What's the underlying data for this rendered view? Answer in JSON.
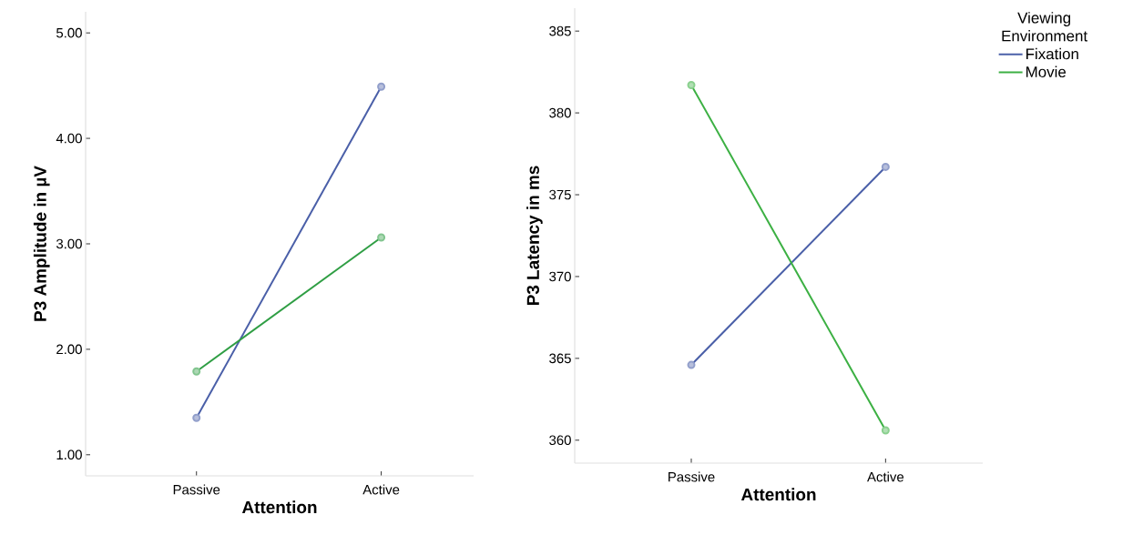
{
  "chart_data": [
    {
      "type": "line",
      "xlabel": "Attention",
      "ylabel": "P3 Amplitude in µV",
      "categories": [
        "Passive",
        "Active"
      ],
      "ylim": [
        0.8,
        5.2
      ],
      "yticks": [
        {
          "value": 1,
          "label": "1.00"
        },
        {
          "value": 2,
          "label": "2.00"
        },
        {
          "value": 3,
          "label": "3.00"
        },
        {
          "value": 4,
          "label": "4.00"
        },
        {
          "value": 5,
          "label": "5.00"
        }
      ],
      "marker": "circle",
      "grid": false,
      "series": [
        {
          "color": "#4a5fa8",
          "values": [
            1.35,
            4.49
          ]
        },
        {
          "color": "#2f9e44",
          "values": [
            1.79,
            3.06
          ]
        }
      ]
    },
    {
      "type": "line",
      "xlabel": "Attention",
      "ylabel": "P3 Latency in ms",
      "legend_title": "Viewing Environment",
      "categories": [
        "Passive",
        "Active"
      ],
      "ylim": [
        358.6,
        386.4
      ],
      "yticks": [
        360,
        365,
        370,
        375,
        380,
        385
      ],
      "marker": "circle",
      "grid": false,
      "legend": "right",
      "series": [
        {
          "name": "Fixation",
          "color": "#4a5fa8",
          "values": [
            364.6,
            376.7
          ]
        },
        {
          "name": "Movie",
          "color": "#3cb043",
          "values": [
            381.7,
            360.6
          ]
        }
      ]
    }
  ]
}
